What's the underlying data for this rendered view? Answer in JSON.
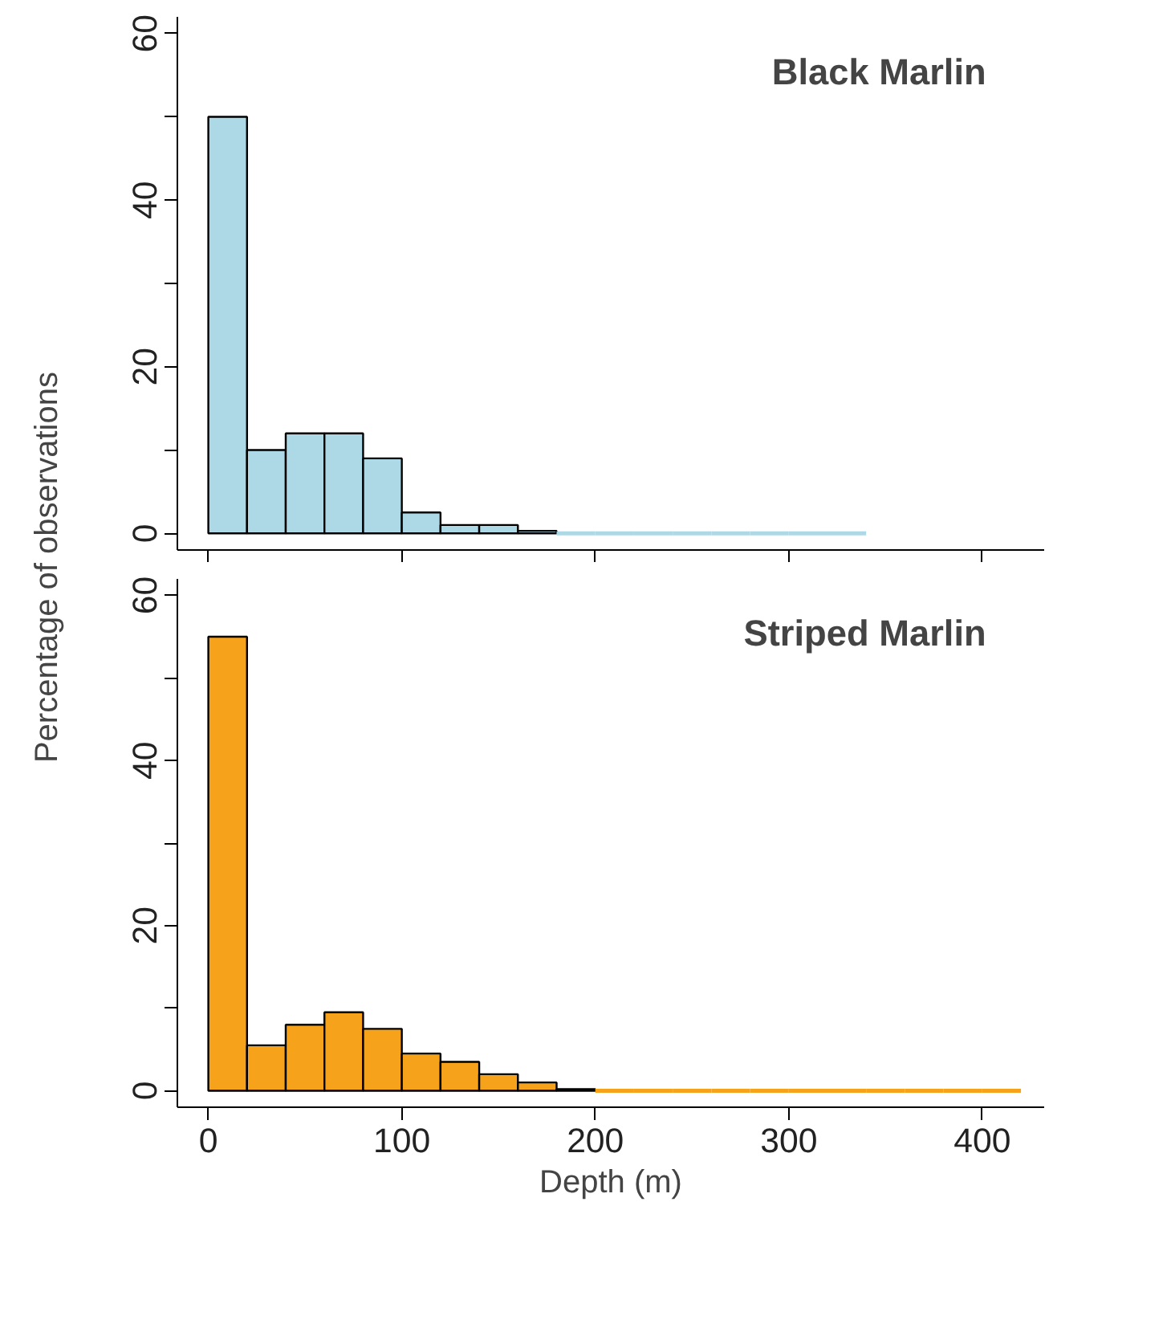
{
  "chart_data": [
    {
      "type": "histogram",
      "title": "Black Marlin",
      "ylabel": "Percentage of observations",
      "color": "#add8e6",
      "bins": [
        0,
        20,
        40,
        60,
        80,
        100,
        120,
        140,
        160,
        180,
        200,
        220,
        240,
        260,
        280,
        300,
        320,
        340
      ],
      "values": [
        50,
        10,
        12,
        12,
        9,
        2.5,
        1,
        1,
        0.3,
        0,
        0,
        0,
        0,
        0,
        0,
        0,
        0
      ],
      "xlim": [
        -16,
        432
      ],
      "ylim": [
        -2,
        62
      ],
      "xticks": [
        {
          "value": 0,
          "label": null
        },
        {
          "value": 100,
          "label": null
        },
        {
          "value": 200,
          "label": null
        },
        {
          "value": 300,
          "label": null
        },
        {
          "value": 400,
          "label": null
        }
      ],
      "yticks": [
        0,
        {
          "value": 10,
          "label": null
        },
        20,
        {
          "value": 30,
          "label": null
        },
        40,
        {
          "value": 50,
          "label": null
        },
        60
      ],
      "tick_labels": "y",
      "grid": false
    },
    {
      "type": "histogram",
      "title": "Striped Marlin",
      "xlabel": "Depth (m)",
      "color": "#f7a21b",
      "bins": [
        0,
        20,
        40,
        60,
        80,
        100,
        120,
        140,
        160,
        180,
        200,
        220,
        240,
        260,
        280,
        300,
        320,
        340,
        360,
        380,
        400,
        420
      ],
      "values": [
        55,
        5.5,
        8,
        9.5,
        7.5,
        4.5,
        3.5,
        2,
        1,
        0.2,
        0,
        0,
        0,
        0,
        0,
        0,
        0,
        0,
        0,
        0,
        0
      ],
      "xlim": [
        -16,
        432
      ],
      "ylim": [
        -2,
        62
      ],
      "xticks": [
        0,
        100,
        200,
        300,
        400
      ],
      "yticks": [
        0,
        {
          "value": 10,
          "label": null
        },
        20,
        {
          "value": 30,
          "label": null
        },
        40,
        {
          "value": 50,
          "label": null
        },
        60
      ],
      "grid": false
    }
  ]
}
